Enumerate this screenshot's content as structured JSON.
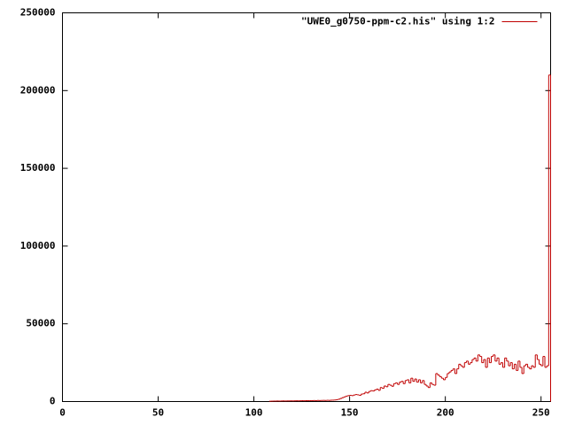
{
  "chart_data": {
    "type": "step",
    "series": [
      {
        "name": "\"UWE0_g0750-ppm-c2.his\" using 1:2",
        "color": "#c00000",
        "x": [
          108,
          109,
          110,
          111,
          112,
          113,
          114,
          115,
          116,
          117,
          118,
          119,
          120,
          121,
          122,
          123,
          124,
          125,
          126,
          127,
          128,
          129,
          130,
          131,
          132,
          133,
          134,
          135,
          136,
          137,
          138,
          139,
          140,
          141,
          142,
          143,
          144,
          145,
          146,
          147,
          148,
          149,
          150,
          151,
          152,
          153,
          154,
          155,
          156,
          157,
          158,
          159,
          160,
          161,
          162,
          163,
          164,
          165,
          166,
          167,
          168,
          169,
          170,
          171,
          172,
          173,
          174,
          175,
          176,
          177,
          178,
          179,
          180,
          181,
          182,
          183,
          184,
          185,
          186,
          187,
          188,
          189,
          190,
          191,
          192,
          193,
          194,
          195,
          196,
          197,
          198,
          199,
          200,
          201,
          202,
          203,
          204,
          205,
          206,
          207,
          208,
          209,
          210,
          211,
          212,
          213,
          214,
          215,
          216,
          217,
          218,
          219,
          220,
          221,
          222,
          223,
          224,
          225,
          226,
          227,
          228,
          229,
          230,
          231,
          232,
          233,
          234,
          235,
          236,
          237,
          238,
          239,
          240,
          241,
          242,
          243,
          244,
          245,
          246,
          247,
          248,
          249,
          250,
          251,
          252,
          253,
          254
        ],
        "values": [
          200,
          250,
          300,
          300,
          350,
          300,
          350,
          400,
          350,
          400,
          400,
          450,
          400,
          450,
          500,
          450,
          500,
          550,
          500,
          550,
          600,
          550,
          600,
          650,
          600,
          700,
          650,
          700,
          750,
          700,
          800,
          750,
          850,
          900,
          1000,
          1200,
          1500,
          2000,
          2500,
          3000,
          3500,
          3800,
          4000,
          3800,
          4200,
          4500,
          4300,
          4000,
          4800,
          5000,
          6000,
          5500,
          6500,
          7000,
          6800,
          7500,
          8000,
          7200,
          9000,
          8500,
          10000,
          9500,
          11000,
          10500,
          9800,
          11500,
          12000,
          11000,
          12500,
          13000,
          11500,
          13500,
          14000,
          12000,
          15000,
          13000,
          14500,
          12500,
          14000,
          12000,
          13500,
          11000,
          10000,
          9000,
          12000,
          11000,
          10500,
          18000,
          17000,
          16000,
          15000,
          14000,
          15500,
          18000,
          19000,
          20000,
          21000,
          18000,
          21000,
          24000,
          23000,
          22000,
          25000,
          26000,
          24000,
          25000,
          27000,
          28000,
          26000,
          30000,
          29000,
          25000,
          27000,
          22000,
          28000,
          25000,
          29000,
          30000,
          26000,
          28000,
          24000,
          25000,
          22000,
          28000,
          26000,
          23000,
          25000,
          21000,
          24000,
          20000,
          26000,
          22000,
          18000,
          23000,
          24000,
          22000,
          21000,
          23000,
          22000,
          30000,
          27000,
          24000,
          23000,
          29000,
          22000,
          23000,
          210000
        ]
      }
    ],
    "xlim": [
      0,
      255
    ],
    "xticks": [
      0,
      50,
      100,
      150,
      200,
      250
    ],
    "ylim": [
      0,
      250000
    ],
    "yticks": [
      0,
      50000,
      100000,
      150000,
      200000,
      250000
    ],
    "legend": "top-right"
  }
}
